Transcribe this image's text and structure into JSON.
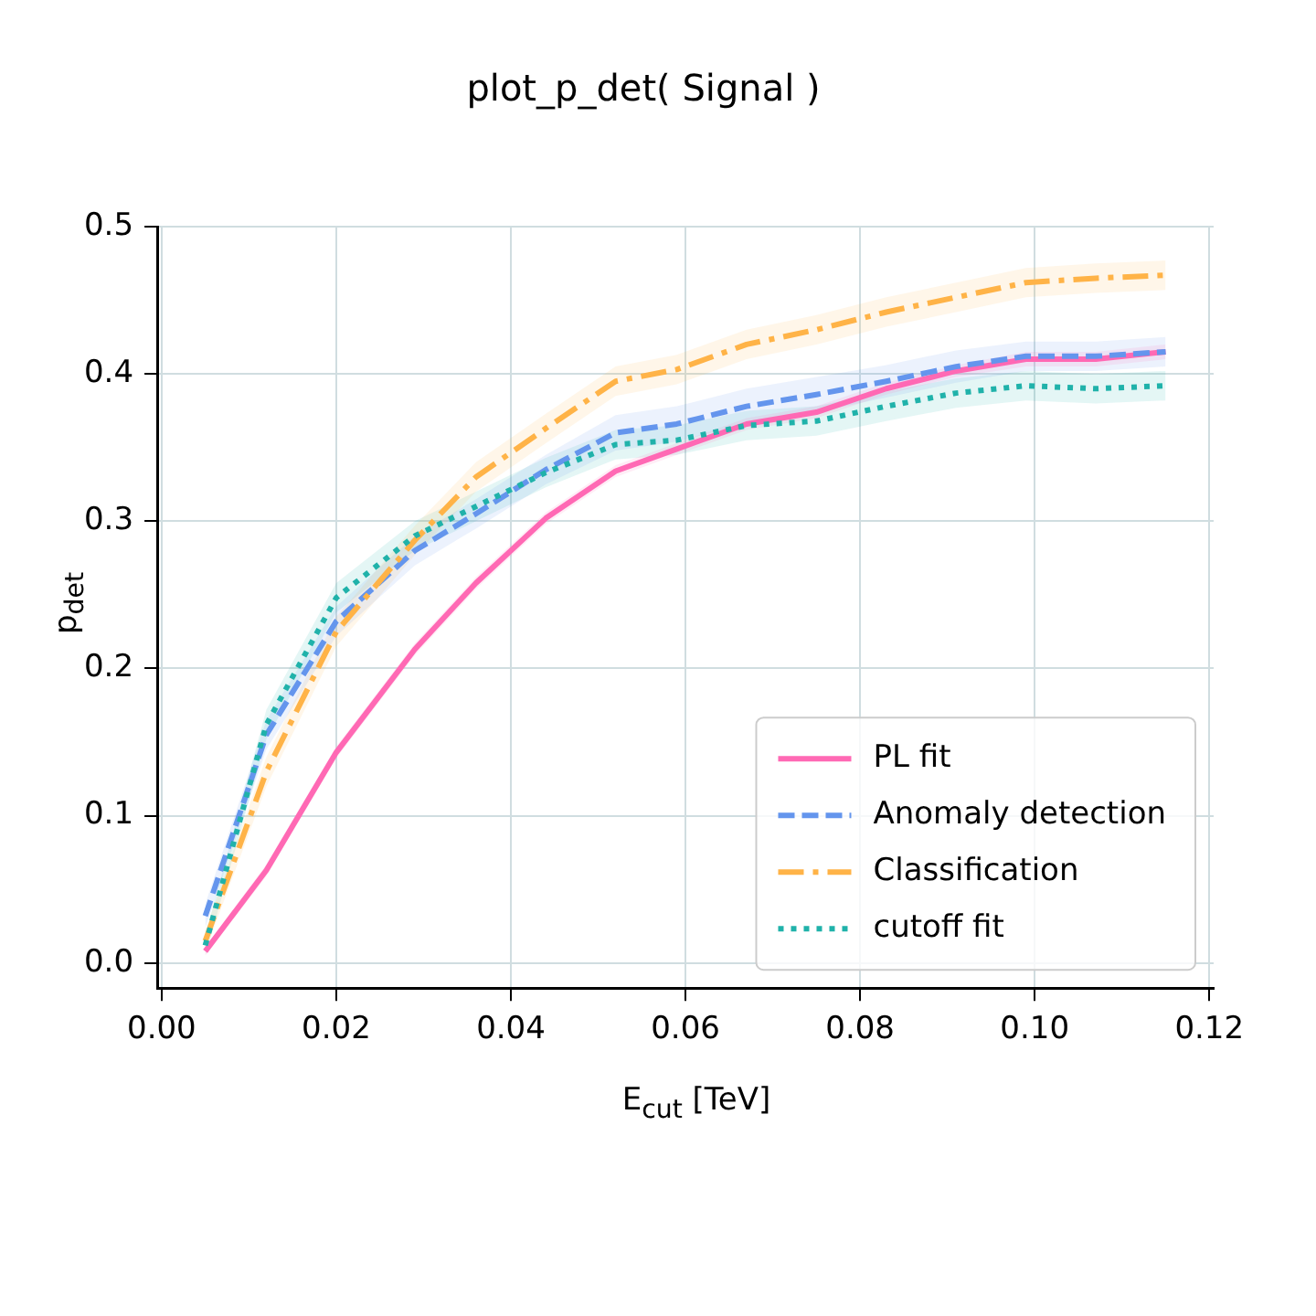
{
  "chart_data": {
    "type": "line",
    "title": "plot_p_det( Signal )",
    "xlabel": "E$_{cut}$ [TeV]",
    "ylabel": "p$_{det}$",
    "x": [
      0.005,
      0.012,
      0.02,
      0.029,
      0.036,
      0.044,
      0.052,
      0.059,
      0.067,
      0.075,
      0.083,
      0.091,
      0.099,
      0.107,
      0.115
    ],
    "series": [
      {
        "name": "PL fit",
        "color": "#ff69b4",
        "line_style": "solid",
        "values": [
          0.008,
          0.063,
          0.143,
          0.213,
          0.258,
          0.302,
          0.334,
          0.349,
          0.366,
          0.374,
          0.39,
          0.402,
          0.41,
          0.41,
          0.415
        ],
        "lower": [
          0.005,
          0.059,
          0.139,
          0.209,
          0.254,
          0.298,
          0.33,
          0.345,
          0.362,
          0.37,
          0.386,
          0.398,
          0.405,
          0.405,
          0.41
        ],
        "upper": [
          0.011,
          0.067,
          0.147,
          0.217,
          0.262,
          0.306,
          0.338,
          0.353,
          0.37,
          0.378,
          0.394,
          0.406,
          0.415,
          0.415,
          0.42
        ]
      },
      {
        "name": "Anomaly detection",
        "color": "#6495ed",
        "line_style": "dashed",
        "values": [
          0.032,
          0.155,
          0.232,
          0.28,
          0.305,
          0.335,
          0.36,
          0.366,
          0.378,
          0.386,
          0.395,
          0.405,
          0.412,
          0.412,
          0.415
        ],
        "lower": [
          0.024,
          0.145,
          0.222,
          0.27,
          0.295,
          0.325,
          0.348,
          0.354,
          0.366,
          0.374,
          0.384,
          0.394,
          0.402,
          0.402,
          0.405
        ],
        "upper": [
          0.04,
          0.165,
          0.242,
          0.29,
          0.315,
          0.345,
          0.372,
          0.378,
          0.39,
          0.398,
          0.406,
          0.416,
          0.422,
          0.422,
          0.425
        ]
      },
      {
        "name": "Classification",
        "color": "#ffb347",
        "line_style": "dashdot",
        "values": [
          0.015,
          0.13,
          0.225,
          0.287,
          0.33,
          0.363,
          0.395,
          0.403,
          0.42,
          0.43,
          0.442,
          0.452,
          0.462,
          0.465,
          0.467
        ],
        "lower": [
          0.008,
          0.12,
          0.215,
          0.277,
          0.32,
          0.353,
          0.385,
          0.393,
          0.41,
          0.42,
          0.432,
          0.442,
          0.452,
          0.455,
          0.457
        ],
        "upper": [
          0.022,
          0.14,
          0.235,
          0.297,
          0.34,
          0.373,
          0.405,
          0.413,
          0.43,
          0.44,
          0.452,
          0.462,
          0.472,
          0.475,
          0.477
        ]
      },
      {
        "name": "cutoff fit",
        "color": "#20b2aa",
        "line_style": "dotted",
        "values": [
          0.012,
          0.162,
          0.248,
          0.29,
          0.31,
          0.333,
          0.352,
          0.355,
          0.365,
          0.368,
          0.378,
          0.387,
          0.392,
          0.39,
          0.392
        ],
        "lower": [
          0.005,
          0.152,
          0.238,
          0.28,
          0.3,
          0.323,
          0.342,
          0.345,
          0.355,
          0.358,
          0.368,
          0.377,
          0.382,
          0.38,
          0.382
        ],
        "upper": [
          0.019,
          0.172,
          0.258,
          0.3,
          0.32,
          0.343,
          0.362,
          0.365,
          0.375,
          0.378,
          0.388,
          0.397,
          0.402,
          0.4,
          0.402
        ]
      }
    ],
    "xlim": [
      -0.0005,
      0.1205
    ],
    "ylim": [
      -0.017,
      0.5
    ],
    "xticks": [
      {
        "value": 0,
        "label": "0.00"
      },
      {
        "value": 0.02,
        "label": "0.02"
      },
      {
        "value": 0.04,
        "label": "0.04"
      },
      {
        "value": 0.06,
        "label": "0.06"
      },
      {
        "value": 0.08,
        "label": "0.08"
      },
      {
        "value": 0.1,
        "label": "0.10"
      },
      {
        "value": 0.12,
        "label": "0.12"
      }
    ],
    "yticks": [
      {
        "value": 0,
        "label": "0.0"
      },
      {
        "value": 0.1,
        "label": "0.1"
      },
      {
        "value": 0.2,
        "label": "0.2"
      },
      {
        "value": 0.3,
        "label": "0.3"
      },
      {
        "value": 0.4,
        "label": "0.4"
      },
      {
        "value": 0.5,
        "label": "0.5"
      }
    ],
    "grid": true,
    "legend": "bottom right",
    "marker": "none"
  }
}
